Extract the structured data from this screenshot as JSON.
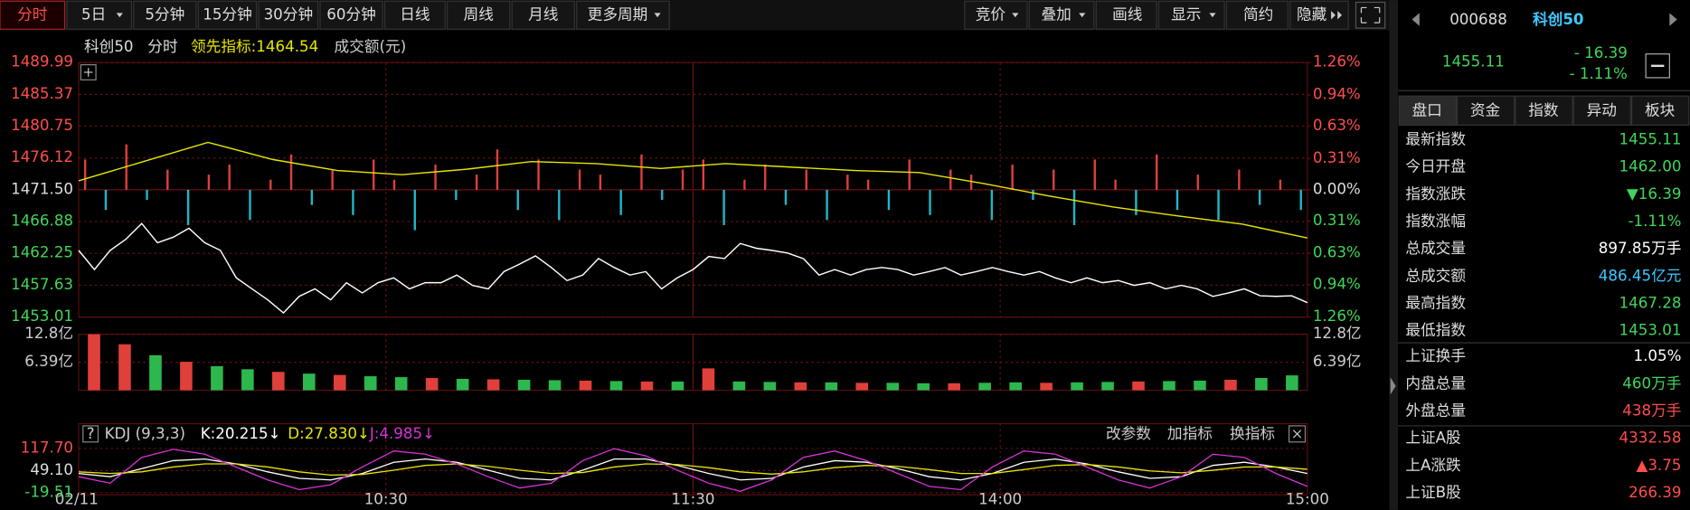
{
  "toolbar": {
    "periods": [
      {
        "label": "分时",
        "active": true
      },
      {
        "label": "5日",
        "menu": true
      },
      {
        "label": "5分钟"
      },
      {
        "label": "15分钟"
      },
      {
        "label": "30分钟"
      },
      {
        "label": "60分钟"
      },
      {
        "label": "日线"
      },
      {
        "label": "周线"
      },
      {
        "label": "月线"
      },
      {
        "label": "更多周期",
        "menu": true
      }
    ],
    "tools": [
      {
        "label": "竞价",
        "menu": true
      },
      {
        "label": "叠加",
        "menu": true
      },
      {
        "label": "画线"
      },
      {
        "label": "显示",
        "menu": true
      },
      {
        "label": "简约"
      },
      {
        "label": "隐藏"
      }
    ]
  },
  "time_axis": {
    "labels": [
      "02/11",
      "10:30",
      "11:30",
      "14:00",
      "15:00"
    ]
  },
  "chart_data": [
    {
      "type": "line",
      "legend": {
        "name": "科创50",
        "period": "分时",
        "indicator": "领先指标:1464.54",
        "volume": "成交额(元)"
      },
      "ylim": [
        1453.01,
        1489.99
      ],
      "yticks": [
        1489.99,
        1485.37,
        1480.75,
        1476.12,
        {
          "value": 1471.5,
          "label": "1471.50"
        },
        1466.88,
        1462.25,
        1457.63,
        1453.01
      ],
      "y2lim": [
        -1.26,
        1.26
      ],
      "y2ticks": [
        {
          "value": 1.26,
          "label": "1.26%"
        },
        {
          "value": 0.94,
          "label": "0.94%"
        },
        {
          "value": 0.63,
          "label": "0.63%"
        },
        {
          "value": 0.31,
          "label": "0.31%"
        },
        {
          "value": 0,
          "label": "0.00%"
        },
        {
          "value": -0.31,
          "label": "0.31%"
        },
        {
          "value": -0.63,
          "label": "0.63%"
        },
        {
          "value": -0.94,
          "label": "0.94%"
        },
        {
          "value": -1.26,
          "label": "1.26%"
        }
      ],
      "grid": true,
      "series": [
        {
          "color": "#ffffff",
          "values": [
            1462.7,
            1459.9,
            1462.7,
            1464.3,
            1466.6,
            1463.8,
            1464.6,
            1465.9,
            1463.8,
            1462.7,
            1458.7,
            1457.1,
            1455.5,
            1453.6,
            1456.0,
            1457.1,
            1455.5,
            1458.0,
            1456.5,
            1458.0,
            1458.7,
            1457.1,
            1458.0,
            1458.0,
            1459.1,
            1457.6,
            1457.1,
            1459.6,
            1460.7,
            1461.9,
            1460.2,
            1458.3,
            1459.1,
            1461.5,
            1460.2,
            1459.1,
            1459.6,
            1457.1,
            1458.7,
            1459.9,
            1461.8,
            1461.5,
            1463.7,
            1463.0,
            1462.7,
            1462.3,
            1461.5,
            1459.1,
            1459.9,
            1459.1,
            1459.9,
            1460.2,
            1459.9,
            1459.1,
            1459.6,
            1460.2,
            1459.1,
            1459.6,
            1460.2,
            1459.6,
            1459.1,
            1459.6,
            1458.7,
            1458.0,
            1458.7,
            1458.0,
            1458.3,
            1457.6,
            1458.0,
            1457.1,
            1457.6,
            1457.1,
            1456.0,
            1456.5,
            1457.1,
            1456.1,
            1456.0,
            1456.1,
            1455.1
          ]
        },
        {
          "color": "#e6e600",
          "values": [
            1472.8,
            1475.6,
            1478.4,
            1475.9,
            1474.3,
            1473.7,
            1474.5,
            1475.6,
            1475.3,
            1474.6,
            1475.3,
            1474.8,
            1474.3,
            1474.0,
            1472.4,
            1470.6,
            1469.0,
            1467.7,
            1466.5,
            1464.5
          ]
        },
        {
          "style": "bar",
          "axis": "y2",
          "up_color": "#e0403a",
          "down_color": "#1fb8c8",
          "values": [
            0.3,
            -0.2,
            0.45,
            -0.1,
            0.2,
            -0.35,
            0.15,
            0.25,
            -0.3,
            0.1,
            0.35,
            -0.15,
            0.2,
            -0.25,
            0.3,
            0.1,
            -0.4,
            0.25,
            -0.1,
            0.15,
            0.4,
            -0.2,
            0.3,
            -0.3,
            0.2,
            0.15,
            -0.25,
            0.35,
            -0.1,
            0.2,
            0.3,
            -0.35,
            0.1,
            0.25,
            -0.15,
            0.2,
            -0.3,
            0.15,
            0.1,
            -0.2,
            0.3,
            -0.25,
            0.2,
            0.15,
            -0.3,
            0.25,
            -0.1,
            0.2,
            -0.35,
            0.3,
            0.1,
            -0.25,
            0.35,
            -0.2,
            0.15,
            -0.3,
            0.2,
            -0.15,
            0.1,
            -0.2
          ]
        }
      ]
    },
    {
      "type": "bar",
      "ylim": [
        0,
        12.8
      ],
      "yticks": [
        {
          "value": 12.8,
          "label": "12.8亿"
        },
        {
          "value": 6.39,
          "label": "6.39亿"
        }
      ],
      "values": [
        12.8,
        10.5,
        8.0,
        6.5,
        5.5,
        4.8,
        4.2,
        3.8,
        3.5,
        3.2,
        3.0,
        2.8,
        2.6,
        2.5,
        2.4,
        2.3,
        2.2,
        2.1,
        2.0,
        2.0,
        5.0,
        2.0,
        1.9,
        1.8,
        1.8,
        1.7,
        1.7,
        1.6,
        1.6,
        1.7,
        1.8,
        1.7,
        1.8,
        1.9,
        2.0,
        2.1,
        2.2,
        2.4,
        2.8,
        3.4
      ],
      "colors": [
        "#e0403a",
        "#e0403a",
        "#2db84d",
        "#e0403a",
        "#2db84d",
        "#2db84d",
        "#e0403a",
        "#2db84d",
        "#e0403a",
        "#2db84d",
        "#2db84d",
        "#e0403a",
        "#2db84d",
        "#e0403a",
        "#2db84d",
        "#2db84d",
        "#e0403a",
        "#2db84d",
        "#e0403a",
        "#2db84d",
        "#e0403a",
        "#2db84d",
        "#2db84d",
        "#e0403a",
        "#2db84d",
        "#e0403a",
        "#2db84d",
        "#2db84d",
        "#e0403a",
        "#2db84d",
        "#2db84d",
        "#e0403a",
        "#2db84d",
        "#2db84d",
        "#e0403a",
        "#2db84d",
        "#2db84d",
        "#e0403a",
        "#2db84d",
        "#2db84d"
      ]
    },
    {
      "type": "line",
      "legend": {
        "name": "KDJ (9,3,3)",
        "k": "K:20.215↓",
        "d": "D:27.830↓",
        "j": "J:4.985↓"
      },
      "buttons": [
        "改参数",
        "加指标",
        "换指标"
      ],
      "ylim": [
        -19.51,
        117.7
      ],
      "yticks": [
        {
          "value": 117.7,
          "label": "117.70"
        },
        {
          "value": 49.1,
          "label": "49.10"
        },
        -19.51
      ],
      "series": [
        {
          "color": "#ffffff",
          "values": [
            40,
            30,
            55,
            80,
            85,
            70,
            45,
            25,
            20,
            40,
            75,
            85,
            75,
            50,
            25,
            20,
            50,
            85,
            85,
            65,
            40,
            20,
            25,
            60,
            80,
            75,
            55,
            30,
            20,
            40,
            75,
            85,
            70,
            45,
            25,
            30,
            65,
            75,
            60,
            40
          ]
        },
        {
          "color": "#e6e600",
          "values": [
            45,
            40,
            45,
            60,
            70,
            70,
            60,
            45,
            35,
            37,
            50,
            65,
            70,
            62,
            50,
            40,
            43,
            60,
            70,
            68,
            58,
            45,
            38,
            45,
            58,
            65,
            62,
            52,
            40,
            40,
            52,
            65,
            68,
            60,
            48,
            42,
            50,
            60,
            60,
            53
          ]
        },
        {
          "color": "#d633d6",
          "values": [
            30,
            10,
            90,
            115,
            100,
            60,
            20,
            -10,
            5,
            60,
            110,
            100,
            70,
            30,
            -5,
            10,
            80,
            117,
            95,
            50,
            10,
            -15,
            20,
            90,
            110,
            80,
            40,
            0,
            -10,
            60,
            110,
            100,
            60,
            20,
            -5,
            30,
            100,
            90,
            40,
            0
          ]
        }
      ]
    }
  ],
  "quote": {
    "code": "000688",
    "name": "科创50",
    "price": "1455.11",
    "change": "- 16.39",
    "change_pct": "- 1.11%",
    "tabs": [
      "盘口",
      "资金",
      "指数",
      "异动",
      "板块"
    ],
    "groups": [
      [
        {
          "label": "最新指数",
          "value": "1455.11",
          "color": "#3fd65a"
        },
        {
          "label": "今日开盘",
          "value": "1462.00",
          "color": "#3fd65a"
        },
        {
          "label": "指数涨跌",
          "value": "▼16.39",
          "color": "#3fd65a"
        },
        {
          "label": "指数涨幅",
          "value": "-1.11%",
          "color": "#3fd65a"
        },
        {
          "label": "总成交量",
          "value": "897.85万手",
          "color": "#ffffff"
        },
        {
          "label": "总成交额",
          "value": "486.45亿元",
          "color": "#3cc8ff"
        },
        {
          "label": "最高指数",
          "value": "1467.28",
          "color": "#3fd65a"
        },
        {
          "label": "最低指数",
          "value": "1453.01",
          "color": "#3fd65a"
        }
      ],
      [
        {
          "label": "上证换手",
          "value": "1.05%",
          "color": "#ffffff"
        },
        {
          "label": "内盘总量",
          "value": "460万手",
          "color": "#3fd65a"
        },
        {
          "label": "外盘总量",
          "value": "438万手",
          "color": "#ff4d4d"
        }
      ],
      [
        {
          "label": "上证A股",
          "value": "4332.58",
          "color": "#ff4d4d"
        },
        {
          "label": "上A涨跌",
          "value": "▲3.75",
          "color": "#ff4d4d"
        },
        {
          "label": "上证B股",
          "value": "266.39",
          "color": "#ff4d4d"
        }
      ]
    ]
  }
}
